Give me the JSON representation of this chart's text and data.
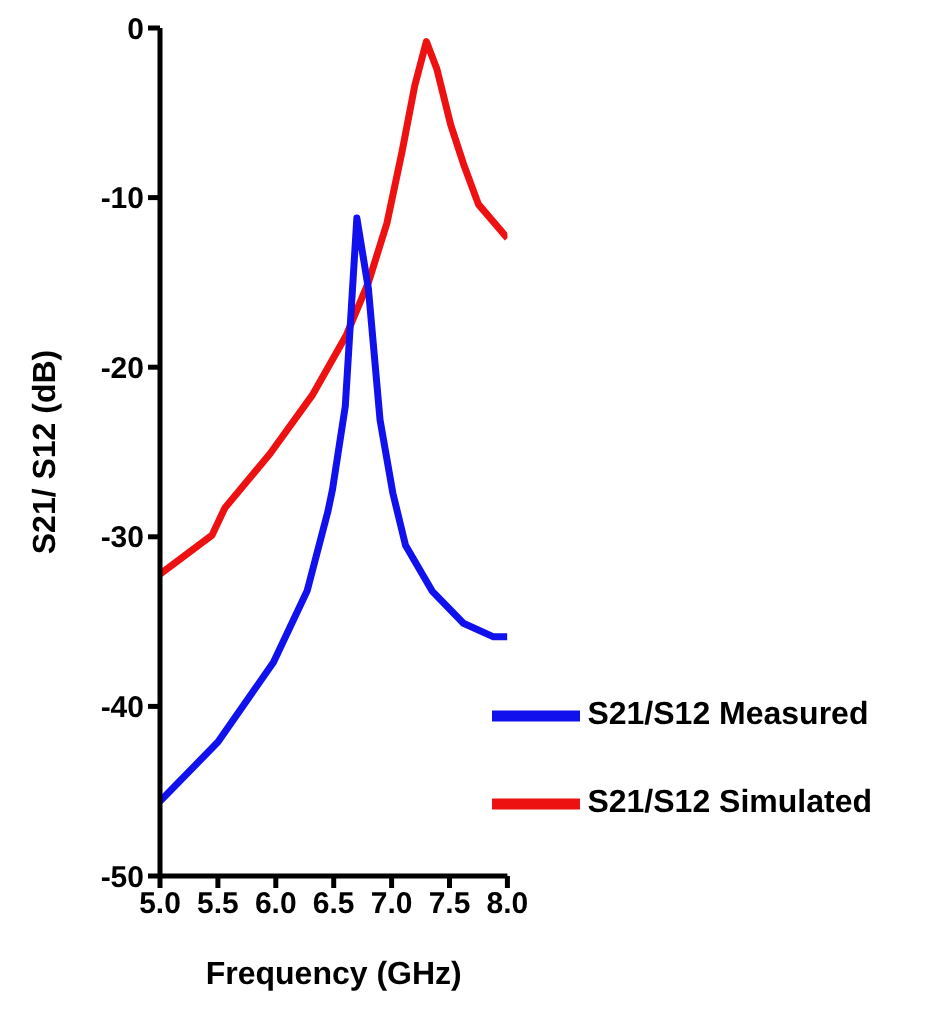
{
  "chart_data": {
    "type": "line",
    "xlabel": "Frequency (GHz)",
    "ylabel": "S21/ S12 (dB)",
    "xlim": [
      5.0,
      8.0
    ],
    "xticks": [
      {
        "value": 5,
        "label": "5.0"
      },
      5.5,
      {
        "value": 6,
        "label": "6.0"
      },
      6.5,
      {
        "value": 7,
        "label": "7.0"
      },
      7.5,
      {
        "value": 8,
        "label": "8.0"
      }
    ],
    "ylim": [
      -50,
      0
    ],
    "yticks": [
      -50,
      -40,
      -30,
      -20,
      -10,
      0
    ],
    "grid": false,
    "legend": "bottom right",
    "marker": "none",
    "line_style": "solid",
    "series": [
      {
        "name": "S21/S12 Simulated",
        "color": "#ee1111",
        "x": [
          5.0,
          5.45,
          5.56,
          5.95,
          6.32,
          6.61,
          6.8,
          6.96,
          7.09,
          7.2,
          7.3,
          7.39,
          7.51,
          7.62,
          7.75,
          8.0
        ],
        "values": [
          -32.2,
          -29.9,
          -28.3,
          -25.1,
          -21.6,
          -18.1,
          -15.0,
          -11.5,
          -7.3,
          -3.4,
          -0.8,
          -2.4,
          -5.7,
          -8.0,
          -10.4,
          -12.4
        ]
      },
      {
        "name": "S21/S12 Measured",
        "color": "#1111ee",
        "x": [
          5.0,
          5.5,
          5.98,
          6.27,
          6.45,
          6.49,
          6.6,
          6.7,
          6.8,
          6.9,
          7.01,
          7.12,
          7.35,
          7.62,
          7.88,
          8.0
        ],
        "values": [
          -45.6,
          -42.1,
          -37.4,
          -33.2,
          -28.5,
          -27.2,
          -22.3,
          -11.2,
          -15.4,
          -23.1,
          -27.4,
          -30.5,
          -33.2,
          -35.1,
          -35.9,
          -35.9
        ]
      }
    ]
  }
}
